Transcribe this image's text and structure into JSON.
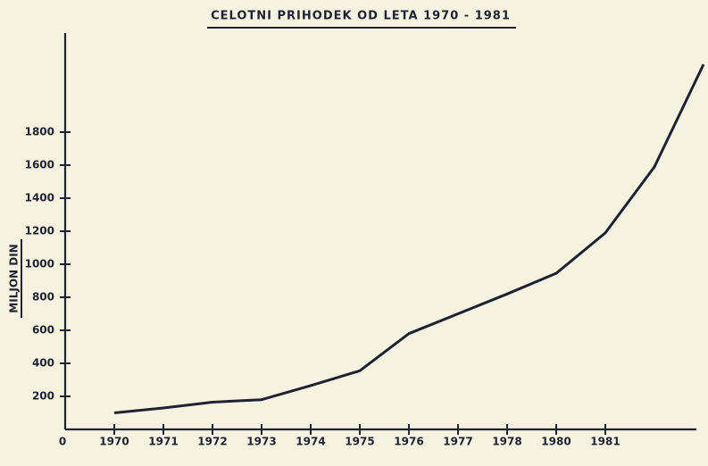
{
  "chart_data": {
    "type": "line",
    "title": "CELOTNI PRIHODEK OD LETA  1970 - 1981",
    "y_label": "MILJON DIN",
    "origin_label": "0",
    "categories": [
      "1970",
      "1971",
      "1972",
      "1973",
      "1974",
      "1975",
      "1976",
      "1977",
      "1978",
      "1980",
      "1981",
      null,
      null
    ],
    "series": [
      {
        "name": "CELOTNI PRIHODEK",
        "color": "#1f2233",
        "values": [
          100,
          130,
          165,
          180,
          265,
          355,
          580,
          700,
          820,
          945,
          1190,
          1590,
          2210
        ]
      }
    ],
    "ylim": [
      0,
      2400
    ],
    "yticks": [
      200,
      400,
      600,
      800,
      1000,
      1200,
      1400,
      1600,
      1800
    ]
  }
}
